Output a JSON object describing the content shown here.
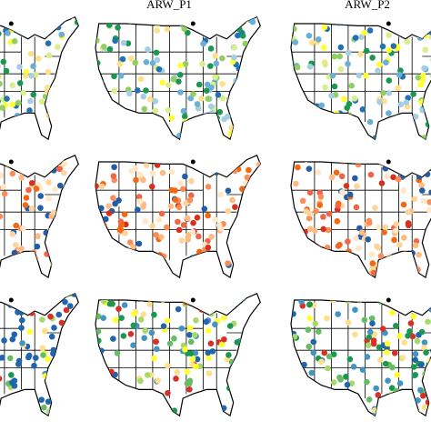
{
  "panel_titles": [
    "ARW_P1",
    "ARW_P2"
  ]
}
